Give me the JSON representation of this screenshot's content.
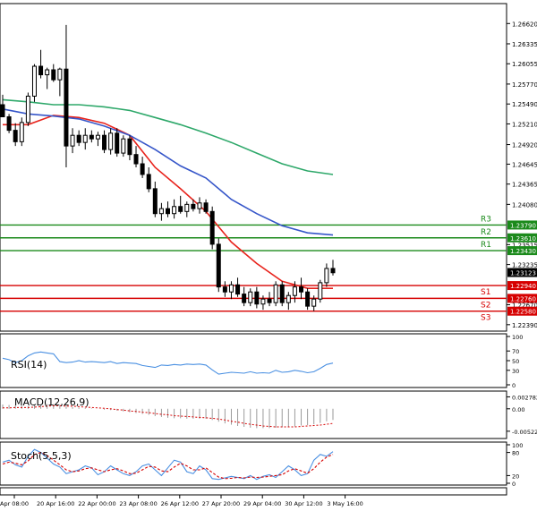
{
  "chart_data": [
    {
      "type": "candlestick",
      "panel": "price",
      "ylim": [
        1.2235,
        1.2685
      ],
      "y_ticks": [
        "1.26620",
        "1.26335",
        "1.26055",
        "1.25770",
        "1.25490",
        "1.25210",
        "1.24920",
        "1.24645",
        "1.24365",
        "1.24080",
        "1.23515",
        "1.23235",
        "1.22670",
        "1.22390"
      ],
      "current_price": "1.23123",
      "levels": [
        {
          "name": "R3",
          "value": "1.23790",
          "num": 1.2379,
          "color": "#1b8a1b"
        },
        {
          "name": "R2",
          "value": "1.23610",
          "num": 1.2361,
          "color": "#1b8a1b"
        },
        {
          "name": "R1",
          "value": "1.23430",
          "num": 1.2343,
          "color": "#1b8a1b"
        },
        {
          "name": "S1",
          "value": "1.22940",
          "num": 1.2294,
          "color": "#d60000"
        },
        {
          "name": "S2",
          "value": "1.22760",
          "num": 1.2276,
          "color": "#d60000"
        },
        {
          "name": "S3",
          "value": "1.22580",
          "num": 1.2258,
          "color": "#d60000"
        }
      ],
      "x_labels": [
        "Apr 08:00",
        "20 Apr 16:00",
        "22 Apr 00:00",
        "23 Apr 08:00",
        "26 Apr 12:00",
        "27 Apr 20:00",
        "29 Apr 04:00",
        "30 Apr 12:00",
        "3 May 16:00"
      ],
      "candles": [
        [
          1.2548,
          1.2562,
          1.2535,
          1.2531
        ],
        [
          1.2531,
          1.2535,
          1.2508,
          1.2512
        ],
        [
          1.2512,
          1.2522,
          1.249,
          1.2496
        ],
        [
          1.2496,
          1.253,
          1.249,
          1.2523
        ],
        [
          1.2523,
          1.2565,
          1.2518,
          1.256
        ],
        [
          1.256,
          1.2605,
          1.2552,
          1.2602
        ],
        [
          1.2602,
          1.2625,
          1.2585,
          1.259
        ],
        [
          1.259,
          1.26,
          1.257,
          1.2597
        ],
        [
          1.2597,
          1.2605,
          1.258,
          1.2583
        ],
        [
          1.2583,
          1.26,
          1.256,
          1.2598
        ],
        [
          1.2598,
          1.266,
          1.246,
          1.249
        ],
        [
          1.249,
          1.2515,
          1.248,
          1.2505
        ],
        [
          1.2505,
          1.2512,
          1.249,
          1.2495
        ],
        [
          1.2495,
          1.2515,
          1.2485,
          1.2505
        ],
        [
          1.2505,
          1.2512,
          1.2495,
          1.25
        ],
        [
          1.25,
          1.251,
          1.249,
          1.2505
        ],
        [
          1.2505,
          1.2512,
          1.248,
          1.2485
        ],
        [
          1.2485,
          1.2515,
          1.2478,
          1.2508
        ],
        [
          1.2508,
          1.2515,
          1.2475,
          1.248
        ],
        [
          1.248,
          1.2505,
          1.2475,
          1.25
        ],
        [
          1.25,
          1.2505,
          1.247,
          1.2478
        ],
        [
          1.2478,
          1.249,
          1.246,
          1.2465
        ],
        [
          1.2465,
          1.2475,
          1.2445,
          1.245
        ],
        [
          1.245,
          1.246,
          1.2425,
          1.243
        ],
        [
          1.243,
          1.244,
          1.239,
          1.2395
        ],
        [
          1.2395,
          1.241,
          1.2385,
          1.2402
        ],
        [
          1.2402,
          1.2412,
          1.239,
          1.2395
        ],
        [
          1.2395,
          1.2415,
          1.2388,
          1.2405
        ],
        [
          1.2405,
          1.242,
          1.2395,
          1.2398
        ],
        [
          1.2398,
          1.2412,
          1.239,
          1.2408
        ],
        [
          1.2408,
          1.2415,
          1.2398,
          1.2402
        ],
        [
          1.2402,
          1.2418,
          1.2395,
          1.241
        ],
        [
          1.241,
          1.2415,
          1.2395,
          1.2398
        ],
        [
          1.2398,
          1.2405,
          1.2345,
          1.2352
        ],
        [
          1.2352,
          1.236,
          1.2285,
          1.2292
        ],
        [
          1.2292,
          1.23,
          1.2278,
          1.2285
        ],
        [
          1.2285,
          1.23,
          1.2275,
          1.2295
        ],
        [
          1.2295,
          1.2305,
          1.2278,
          1.2282
        ],
        [
          1.2282,
          1.2292,
          1.2265,
          1.227
        ],
        [
          1.227,
          1.229,
          1.2265,
          1.2285
        ],
        [
          1.2285,
          1.2292,
          1.2262,
          1.2268
        ],
        [
          1.2268,
          1.228,
          1.226,
          1.2275
        ],
        [
          1.2275,
          1.2285,
          1.2265,
          1.227
        ],
        [
          1.227,
          1.23,
          1.2265,
          1.2295
        ],
        [
          1.2295,
          1.23,
          1.2265,
          1.227
        ],
        [
          1.227,
          1.2285,
          1.226,
          1.228
        ],
        [
          1.228,
          1.23,
          1.227,
          1.2292
        ],
        [
          1.2292,
          1.2305,
          1.2275,
          1.2285
        ],
        [
          1.2285,
          1.229,
          1.226,
          1.2265
        ],
        [
          1.2265,
          1.228,
          1.2258,
          1.2275
        ],
        [
          1.2275,
          1.2302,
          1.227,
          1.2298
        ],
        [
          1.2298,
          1.2325,
          1.2292,
          1.2318
        ],
        [
          1.2318,
          1.233,
          1.2308,
          1.2312
        ]
      ],
      "ma_series": [
        {
          "color": "#e8231c",
          "points": [
            [
              0,
              1.252
            ],
            [
              4,
              1.252
            ],
            [
              8,
              1.2533
            ],
            [
              12,
              1.253
            ],
            [
              16,
              1.2522
            ],
            [
              20,
              1.2505
            ],
            [
              24,
              1.246
            ],
            [
              28,
              1.243
            ],
            [
              32,
              1.2398
            ],
            [
              36,
              1.2355
            ],
            [
              40,
              1.2325
            ],
            [
              44,
              1.23
            ],
            [
              48,
              1.229
            ],
            [
              52,
              1.229
            ]
          ]
        },
        {
          "color": "#3656c9",
          "points": [
            [
              0,
              1.2542
            ],
            [
              4,
              1.2535
            ],
            [
              8,
              1.2532
            ],
            [
              12,
              1.2528
            ],
            [
              16,
              1.2518
            ],
            [
              20,
              1.2505
            ],
            [
              24,
              1.2485
            ],
            [
              28,
              1.2462
            ],
            [
              32,
              1.2445
            ],
            [
              36,
              1.2415
            ],
            [
              40,
              1.2395
            ],
            [
              44,
              1.2378
            ],
            [
              48,
              1.2368
            ],
            [
              52,
              1.2365
            ]
          ]
        },
        {
          "color": "#2ea86a",
          "points": [
            [
              0,
              1.2555
            ],
            [
              4,
              1.2552
            ],
            [
              8,
              1.2548
            ],
            [
              12,
              1.2548
            ],
            [
              16,
              1.2545
            ],
            [
              20,
              1.254
            ],
            [
              24,
              1.253
            ],
            [
              28,
              1.252
            ],
            [
              32,
              1.2508
            ],
            [
              36,
              1.2495
            ],
            [
              40,
              1.248
            ],
            [
              44,
              1.2465
            ],
            [
              48,
              1.2455
            ],
            [
              52,
              1.245
            ]
          ]
        }
      ]
    },
    {
      "type": "line",
      "panel": "rsi",
      "title": "RSI(14)",
      "ylim": [
        0,
        100
      ],
      "y_ticks": [
        "100",
        "70",
        "50",
        "30",
        "0"
      ],
      "series": [
        {
          "color": "#4a90e2",
          "values": [
            55,
            52,
            46,
            50,
            60,
            66,
            68,
            66,
            64,
            48,
            46,
            47,
            50,
            47,
            48,
            47,
            46,
            48,
            44,
            46,
            45,
            44,
            40,
            38,
            36,
            41,
            40,
            42,
            41,
            43,
            42,
            43,
            41,
            31,
            22,
            24,
            26,
            25,
            24,
            27,
            24,
            25,
            24,
            30,
            26,
            27,
            30,
            28,
            25,
            27,
            34,
            42,
            45
          ]
        }
      ]
    },
    {
      "type": "bar",
      "panel": "macd",
      "title": "MACD(12,26,9)",
      "ylim": [
        -0.0065,
        0.0035
      ],
      "y_ticks": [
        "0.002782",
        "0.00",
        "-0.00522"
      ],
      "histogram": [
        0.001,
        0.0009,
        0.0008,
        0.0007,
        0.0006,
        0.0008,
        0.001,
        0.0011,
        0.0011,
        0.0009,
        0.0006,
        0.0004,
        0.0003,
        0.0002,
        0.0001,
        0.0,
        -0.0002,
        -0.0003,
        -0.0004,
        -0.0006,
        -0.0008,
        -0.001,
        -0.0012,
        -0.0014,
        -0.0017,
        -0.0019,
        -0.0021,
        -0.0022,
        -0.0022,
        -0.0023,
        -0.0023,
        -0.0023,
        -0.0023,
        -0.0026,
        -0.003,
        -0.0034,
        -0.0037,
        -0.004,
        -0.0042,
        -0.0044,
        -0.0045,
        -0.0045,
        -0.0045,
        -0.0044,
        -0.0043,
        -0.0042,
        -0.0041,
        -0.0039,
        -0.0038,
        -0.0036,
        -0.0033,
        -0.0029,
        -0.0026
      ],
      "signal": [
        0.0002,
        0.0002,
        0.0003,
        0.0003,
        0.0003,
        0.0004,
        0.0005,
        0.0006,
        0.0007,
        0.0007,
        0.0006,
        0.0006,
        0.0005,
        0.0004,
        0.0003,
        0.0002,
        0.0001,
        0.0,
        -0.0002,
        -0.0003,
        -0.0005,
        -0.0006,
        -0.0008,
        -0.0009,
        -0.0011,
        -0.0013,
        -0.0014,
        -0.0016,
        -0.0017,
        -0.0018,
        -0.0019,
        -0.002,
        -0.0021,
        -0.0022,
        -0.0024,
        -0.0026,
        -0.0029,
        -0.0031,
        -0.0034,
        -0.0036,
        -0.0038,
        -0.004,
        -0.0041,
        -0.0042,
        -0.0042,
        -0.0042,
        -0.0042,
        -0.0041,
        -0.004,
        -0.0039,
        -0.0038,
        -0.0036,
        -0.0034
      ],
      "signal_color": "#d60000"
    },
    {
      "type": "line",
      "panel": "stoch",
      "title": "Stoch(5,5,3)",
      "ylim": [
        0,
        100
      ],
      "y_ticks": [
        "100",
        "80",
        "20",
        "0"
      ],
      "series": [
        {
          "color": "#4a90e2",
          "values": [
            55,
            60,
            48,
            42,
            70,
            88,
            80,
            65,
            50,
            42,
            25,
            30,
            35,
            45,
            40,
            22,
            30,
            45,
            35,
            25,
            20,
            30,
            45,
            50,
            35,
            20,
            40,
            60,
            55,
            30,
            25,
            45,
            35,
            12,
            10,
            14,
            18,
            15,
            12,
            20,
            10,
            18,
            22,
            15,
            30,
            45,
            35,
            20,
            25,
            60,
            75,
            70,
            82
          ]
        },
        {
          "color": "#d60000",
          "values": [
            50,
            55,
            52,
            48,
            58,
            75,
            80,
            72,
            60,
            48,
            35,
            30,
            32,
            38,
            40,
            35,
            30,
            35,
            38,
            32,
            25,
            26,
            35,
            44,
            42,
            32,
            30,
            42,
            52,
            45,
            35,
            35,
            40,
            28,
            16,
            12,
            13,
            15,
            14,
            16,
            15,
            16,
            18,
            20,
            22,
            32,
            38,
            32,
            26,
            38,
            55,
            68,
            75
          ]
        }
      ]
    }
  ]
}
